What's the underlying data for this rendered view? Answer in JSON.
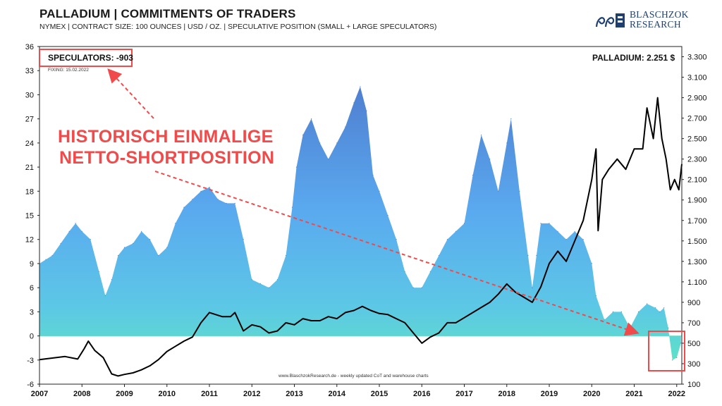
{
  "header": {
    "title": "PALLADIUM | COMMITMENTS OF TRADERS",
    "subtitle": "NYMEX | CONTRACT SIZE: 100 OUNCES | USD / OZ. | SPECULATIVE POSITION (SMALL + LARGE SPECULATORS)"
  },
  "logo": {
    "line1": "BLASCHZOK",
    "line2": "RESEARCH"
  },
  "annotations": {
    "speculators_box": "SPECULATORS: -903",
    "fixing": "FIXING:  15.02.2022",
    "price_label": "PALLADIUM: 2.251 $",
    "callout_line1": "HISTORISCH EINMALIGE",
    "callout_line2": "NETTO-SHORTPOSITION",
    "watermark": "www.BlaschzokResearch.de  -  weekly updated CoT and warehouse  charts"
  },
  "colors": {
    "area_top": "#4f7fd0",
    "area_mid": "#5aa9ef",
    "area_bottom": "#5fe0c8",
    "price_line": "#000000",
    "annotation_red": "#f04a4a"
  },
  "chart_data": {
    "type": "area",
    "title": "PALLADIUM | COMMITMENTS OF TRADERS",
    "x_ticks": [
      "2007",
      "2008",
      "2009",
      "2010",
      "2011",
      "2012",
      "2013",
      "2014",
      "2015",
      "2016",
      "2017",
      "2018",
      "2019",
      "2020",
      "2021",
      "2022"
    ],
    "xlim": [
      2007.0,
      2022.12
    ],
    "y_left": {
      "ticks": [
        -6,
        -3,
        0,
        3,
        6,
        9,
        12,
        15,
        18,
        21,
        24,
        27,
        30,
        33,
        36
      ],
      "lim": [
        -6,
        36
      ]
    },
    "y_right": {
      "ticks": [
        "100",
        "300",
        "500",
        "700",
        "900",
        "1.100",
        "1.300",
        "1.500",
        "1.700",
        "1.900",
        "2.100",
        "2.300",
        "2.500",
        "2.700",
        "2.900",
        "3.100",
        "3.300"
      ],
      "lim": [
        100,
        3400
      ]
    },
    "series": [
      {
        "name": "SPECULATORS",
        "axis": "left",
        "x": [
          2007.0,
          2007.15,
          2007.3,
          2007.5,
          2007.7,
          2007.85,
          2008.0,
          2008.2,
          2008.4,
          2008.55,
          2008.7,
          2008.85,
          2009.0,
          2009.2,
          2009.4,
          2009.6,
          2009.8,
          2010.0,
          2010.2,
          2010.4,
          2010.6,
          2010.8,
          2011.0,
          2011.2,
          2011.4,
          2011.6,
          2011.8,
          2012.0,
          2012.2,
          2012.4,
          2012.6,
          2012.8,
          2012.95,
          2013.05,
          2013.2,
          2013.4,
          2013.6,
          2013.8,
          2014.0,
          2014.2,
          2014.4,
          2014.55,
          2014.7,
          2014.85,
          2015.0,
          2015.2,
          2015.4,
          2015.6,
          2015.8,
          2016.0,
          2016.2,
          2016.4,
          2016.6,
          2016.8,
          2017.0,
          2017.2,
          2017.4,
          2017.6,
          2017.8,
          2018.0,
          2018.1,
          2018.3,
          2018.5,
          2018.6,
          2018.7,
          2018.8,
          2019.0,
          2019.2,
          2019.4,
          2019.6,
          2019.8,
          2020.0,
          2020.1,
          2020.3,
          2020.5,
          2020.7,
          2020.9,
          2021.1,
          2021.3,
          2021.5,
          2021.6,
          2021.7,
          2021.8,
          2021.9,
          2022.0,
          2022.1
        ],
        "values": [
          9,
          9.5,
          10,
          11.5,
          13,
          14,
          13,
          12,
          8,
          5,
          7,
          10,
          11,
          11.5,
          13,
          12,
          10,
          11,
          14,
          16,
          17,
          18,
          18.5,
          17,
          16.5,
          16.5,
          12,
          7,
          6.5,
          6,
          7,
          10,
          16,
          21,
          25,
          27,
          24,
          22,
          24,
          26,
          29,
          31,
          28,
          20,
          18,
          15,
          12,
          8,
          6,
          6,
          8,
          10,
          12,
          13,
          14,
          20,
          25,
          22,
          18,
          24,
          27,
          18,
          10,
          6,
          10,
          14,
          14,
          13,
          12,
          13,
          12,
          9,
          5,
          2,
          3,
          3,
          1,
          3,
          4,
          3.5,
          3,
          3.5,
          1,
          -3,
          -2.7,
          -0.9
        ]
      },
      {
        "name": "PALLADIUM",
        "axis": "right",
        "x": [
          2007.0,
          2007.3,
          2007.6,
          2007.9,
          2008.05,
          2008.15,
          2008.3,
          2008.5,
          2008.7,
          2008.85,
          2009.0,
          2009.2,
          2009.4,
          2009.6,
          2009.8,
          2010.0,
          2010.2,
          2010.4,
          2010.6,
          2010.8,
          2011.0,
          2011.15,
          2011.3,
          2011.5,
          2011.6,
          2011.8,
          2012.0,
          2012.2,
          2012.4,
          2012.6,
          2012.8,
          2013.0,
          2013.2,
          2013.4,
          2013.6,
          2013.8,
          2014.0,
          2014.2,
          2014.4,
          2014.6,
          2014.8,
          2015.0,
          2015.2,
          2015.4,
          2015.6,
          2015.8,
          2016.0,
          2016.2,
          2016.4,
          2016.6,
          2016.8,
          2017.0,
          2017.2,
          2017.4,
          2017.6,
          2017.8,
          2018.0,
          2018.2,
          2018.4,
          2018.6,
          2018.8,
          2019.0,
          2019.2,
          2019.4,
          2019.6,
          2019.8,
          2020.0,
          2020.1,
          2020.15,
          2020.25,
          2020.4,
          2020.6,
          2020.8,
          2021.0,
          2021.2,
          2021.3,
          2021.45,
          2021.55,
          2021.65,
          2021.75,
          2021.85,
          2021.95,
          2022.05,
          2022.12
        ],
        "values": [
          340,
          355,
          370,
          345,
          445,
          520,
          430,
          360,
          200,
          180,
          195,
          210,
          240,
          280,
          340,
          420,
          470,
          520,
          560,
          700,
          800,
          780,
          760,
          760,
          800,
          620,
          680,
          660,
          600,
          620,
          700,
          680,
          740,
          720,
          720,
          760,
          740,
          800,
          820,
          860,
          820,
          790,
          780,
          740,
          700,
          600,
          500,
          560,
          600,
          700,
          700,
          750,
          800,
          850,
          900,
          980,
          1080,
          1000,
          950,
          900,
          1050,
          1280,
          1400,
          1300,
          1500,
          1700,
          2100,
          2400,
          1600,
          2100,
          2200,
          2300,
          2200,
          2400,
          2400,
          2800,
          2500,
          2900,
          2500,
          2300,
          2000,
          2100,
          2000,
          2251
        ]
      }
    ]
  }
}
